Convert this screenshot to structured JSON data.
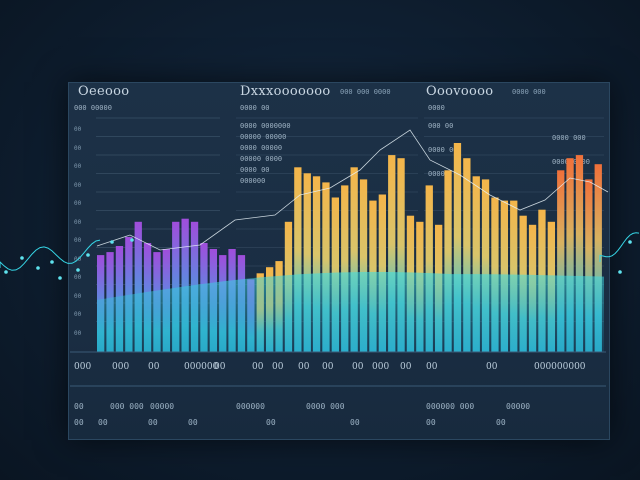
{
  "headers": {
    "left": "Oeeooo",
    "middle": "Dxxxooooooo",
    "right": "Ooovoooo",
    "middle_extra": "000 000 0000",
    "right_extra": "0000 000"
  },
  "subheaders": {
    "left": "000 00000",
    "middle": "0000 00",
    "right": "0000"
  },
  "left_ticks": [
    "00",
    "00",
    "00",
    "00",
    "00",
    "00",
    "00",
    "00",
    "00",
    "00",
    "00",
    "00"
  ],
  "mid_notes": [
    "0000 0000000",
    "00000 00000",
    "0000 00000",
    "00000 0000",
    "0000 00",
    "000000"
  ],
  "right_notes": [
    "000 00",
    "0000 000",
    "0000 00",
    "0000 0000",
    "00000"
  ],
  "x_labels": [
    "000",
    "000",
    "00",
    "000000",
    "00",
    "00",
    "00",
    "00",
    "00",
    "00",
    "000",
    "00",
    "00",
    "00",
    "000000000"
  ],
  "footer_rows": [
    [
      "00",
      "000 000",
      "00000",
      "000000",
      "0000 000",
      "000000 000",
      "00000"
    ],
    [
      "00",
      "00",
      "00",
      "00",
      "00",
      "00",
      "00",
      "00"
    ]
  ],
  "colors": {
    "teal": "#2ec9d6",
    "gold": "#f2b84b",
    "purple": "#9b4fd6",
    "orange": "#f07a3a"
  },
  "chart_data": {
    "type": "bar",
    "bar_values": [
      32,
      33,
      35,
      38,
      43,
      36,
      33,
      34,
      43,
      44,
      43,
      36,
      34,
      32,
      34,
      32,
      24,
      26,
      28,
      30,
      43,
      61,
      59,
      58,
      56,
      51,
      55,
      61,
      57,
      50,
      52,
      65,
      64,
      45,
      43,
      55,
      42,
      60,
      69,
      64,
      58,
      57,
      51,
      50,
      50,
      45,
      42,
      47,
      43,
      60,
      64,
      65,
      57,
      62
    ]
  }
}
